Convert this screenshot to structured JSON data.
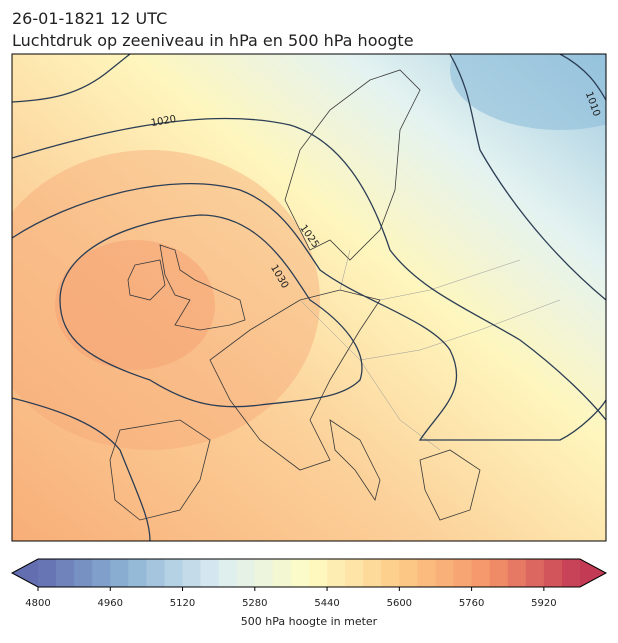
{
  "header": {
    "date": "26-01-1821 12 UTC",
    "title": "Luchtdruk op zeeniveau in hPa en 500 hPa hoogte"
  },
  "map": {
    "contour_labels": [
      "1020",
      "1025",
      "1030",
      "1010"
    ]
  },
  "colorbar": {
    "label": "500 hPa hoogte in meter",
    "range": [
      4800,
      6000
    ],
    "step": 40,
    "ticks": [
      4800,
      4960,
      5120,
      5280,
      5440,
      5600,
      5760,
      5920
    ],
    "colors": [
      "#636eb0",
      "#8db4d5",
      "#dcedf3",
      "#fefcc4",
      "#fdcb88",
      "#f5946a",
      "#c33a55"
    ]
  }
}
